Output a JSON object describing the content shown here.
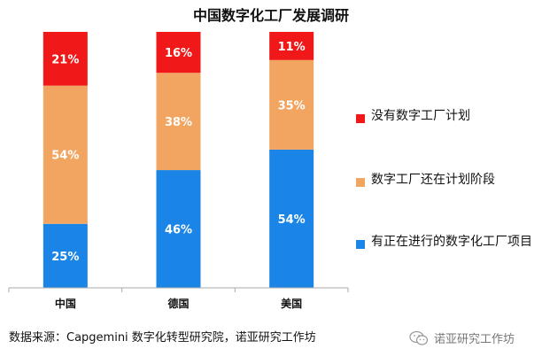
{
  "chart_data": {
    "type": "bar",
    "stacked": true,
    "title": "中国数字化工厂发展调研",
    "categories": [
      "中国",
      "德国",
      "美国"
    ],
    "series": [
      {
        "name": "有正在进行的数字化工厂项目",
        "values": [
          25,
          46,
          54
        ],
        "labels": [
          "25%",
          "46%",
          "54%"
        ],
        "color": "#1a85e6"
      },
      {
        "name": "数字工厂还在计划阶段",
        "values": [
          54,
          38,
          35
        ],
        "labels": [
          "54%",
          "38%",
          "35%"
        ],
        "color": "#f2a561"
      },
      {
        "name": "没有数字工厂计划",
        "values": [
          21,
          16,
          11
        ],
        "labels": [
          "21%",
          "16%",
          "11%"
        ],
        "color": "#f01818"
      }
    ],
    "ylim": [
      0,
      100
    ],
    "legend_position": "right",
    "grid": false
  },
  "legend_order": [
    2,
    1,
    0
  ],
  "source_text": "数据来源：Capgemini 数字化转型研究院，诺亚研究工作坊",
  "watermark": {
    "text": "诺亚研究工作坊",
    "icon": "wechat-icon"
  }
}
